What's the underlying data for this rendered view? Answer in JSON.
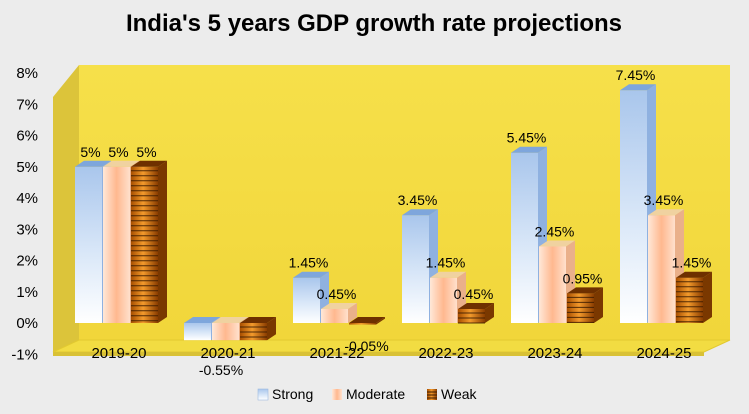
{
  "chart_data": {
    "type": "bar",
    "title": "India's 5 years GDP growth rate projections",
    "categories": [
      "2019-20",
      "2020-21",
      "2021-22",
      "2022-23",
      "2023-24",
      "2024-25"
    ],
    "series": [
      {
        "name": "Strong",
        "values": [
          5,
          -0.55,
          1.45,
          3.45,
          5.45,
          7.45
        ],
        "labels": [
          "5%",
          "-0.55%",
          "1.45%",
          "3.45%",
          "5.45%",
          "7.45%"
        ],
        "color": "#bcd4f0"
      },
      {
        "name": "Moderate",
        "values": [
          5,
          -0.55,
          0.45,
          1.45,
          2.45,
          3.45
        ],
        "labels": [
          "5%",
          "",
          "0.45%",
          "1.45%",
          "2.45%",
          "3.45%"
        ],
        "color": "#ffc7a6"
      },
      {
        "name": "Weak",
        "values": [
          5,
          -0.55,
          -0.05,
          0.45,
          0.95,
          1.45
        ],
        "labels": [
          "5%",
          "",
          "-0.05%",
          "0.45%",
          "0.95%",
          "1.45%"
        ],
        "color": "#e07a10"
      }
    ],
    "yticks": [
      "-1%",
      "0%",
      "1%",
      "2%",
      "3%",
      "4%",
      "5%",
      "6%",
      "7%",
      "8%"
    ],
    "ylim": [
      -1,
      8
    ],
    "grid": false,
    "legend_position": "bottom",
    "plot_background": "#f7e24a",
    "page_background": "#ececec"
  }
}
